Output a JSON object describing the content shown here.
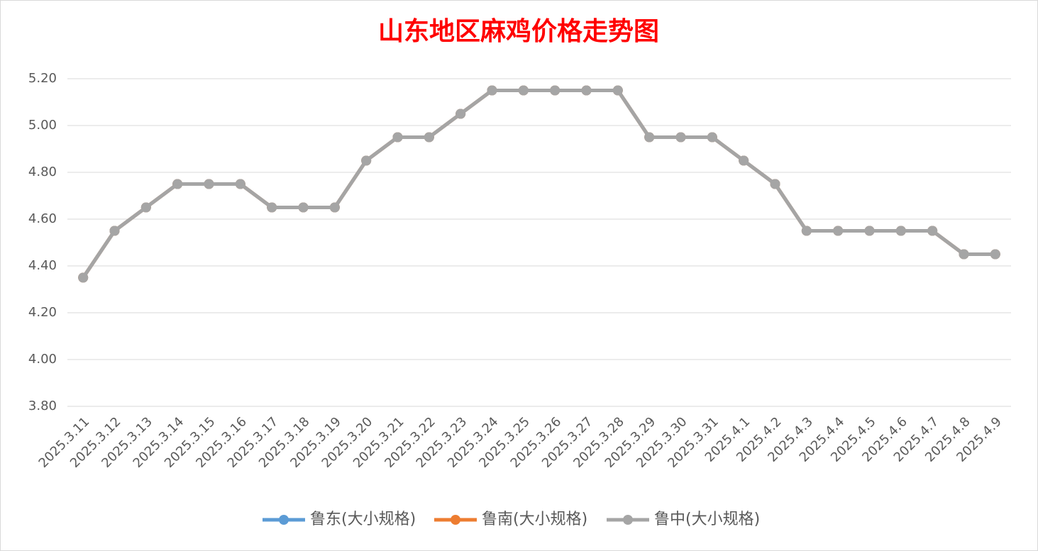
{
  "chart_data": {
    "type": "line",
    "title": "山东地区麻鸡价格走势图",
    "categories": [
      "2025.3.11",
      "2025.3.12",
      "2025.3.13",
      "2025.3.14",
      "2025.3.15",
      "2025.3.16",
      "2025.3.17",
      "2025.3.18",
      "2025.3.19",
      "2025.3.20",
      "2025.3.21",
      "2025.3.22",
      "2025.3.23",
      "2025.3.24",
      "2025.3.25",
      "2025.3.26",
      "2025.3.27",
      "2025.3.28",
      "2025.3.29",
      "2025.3.30",
      "2025.3.31",
      "2025.4.1",
      "2025.4.2",
      "2025.4.3",
      "2025.4.4",
      "2025.4.5",
      "2025.4.6",
      "2025.4.7",
      "2025.4.8",
      "2025.4.9"
    ],
    "series": [
      {
        "name": "鲁东(大小规格)",
        "color": "#5b9bd5",
        "values": [
          4.35,
          4.55,
          4.65,
          4.75,
          4.75,
          4.75,
          4.65,
          4.65,
          4.65,
          4.85,
          4.95,
          4.95,
          5.05,
          5.15,
          5.15,
          5.15,
          5.15,
          5.15,
          4.95,
          4.95,
          4.95,
          4.85,
          4.75,
          4.55,
          4.55,
          4.55,
          4.55,
          4.55,
          4.45,
          4.45
        ]
      },
      {
        "name": "鲁南(大小规格)",
        "color": "#ed7d31",
        "values": [
          4.35,
          4.55,
          4.65,
          4.75,
          4.75,
          4.75,
          4.65,
          4.65,
          4.65,
          4.85,
          4.95,
          4.95,
          5.05,
          5.15,
          5.15,
          5.15,
          5.15,
          5.15,
          4.95,
          4.95,
          4.95,
          4.85,
          4.75,
          4.55,
          4.55,
          4.55,
          4.55,
          4.55,
          4.45,
          4.45
        ]
      },
      {
        "name": "鲁中(大小规格)",
        "color": "#a5a5a5",
        "values": [
          4.35,
          4.55,
          4.65,
          4.75,
          4.75,
          4.75,
          4.65,
          4.65,
          4.65,
          4.85,
          4.95,
          4.95,
          5.05,
          5.15,
          5.15,
          5.15,
          5.15,
          5.15,
          4.95,
          4.95,
          4.95,
          4.85,
          4.75,
          4.55,
          4.55,
          4.55,
          4.55,
          4.55,
          4.45,
          4.45
        ]
      }
    ],
    "ylim": [
      3.8,
      5.2
    ],
    "yticks": [
      {
        "value": 3.8,
        "label": "3.80"
      },
      {
        "value": 4.0,
        "label": "4.00"
      },
      {
        "value": 4.2,
        "label": "4.20"
      },
      {
        "value": 4.4,
        "label": "4.40"
      },
      {
        "value": 4.6,
        "label": "4.60"
      },
      {
        "value": 4.8,
        "label": "4.80"
      },
      {
        "value": 5.0,
        "label": "5.00"
      },
      {
        "value": 5.2,
        "label": "5.20"
      }
    ],
    "grid": true,
    "legend": "bottom"
  }
}
